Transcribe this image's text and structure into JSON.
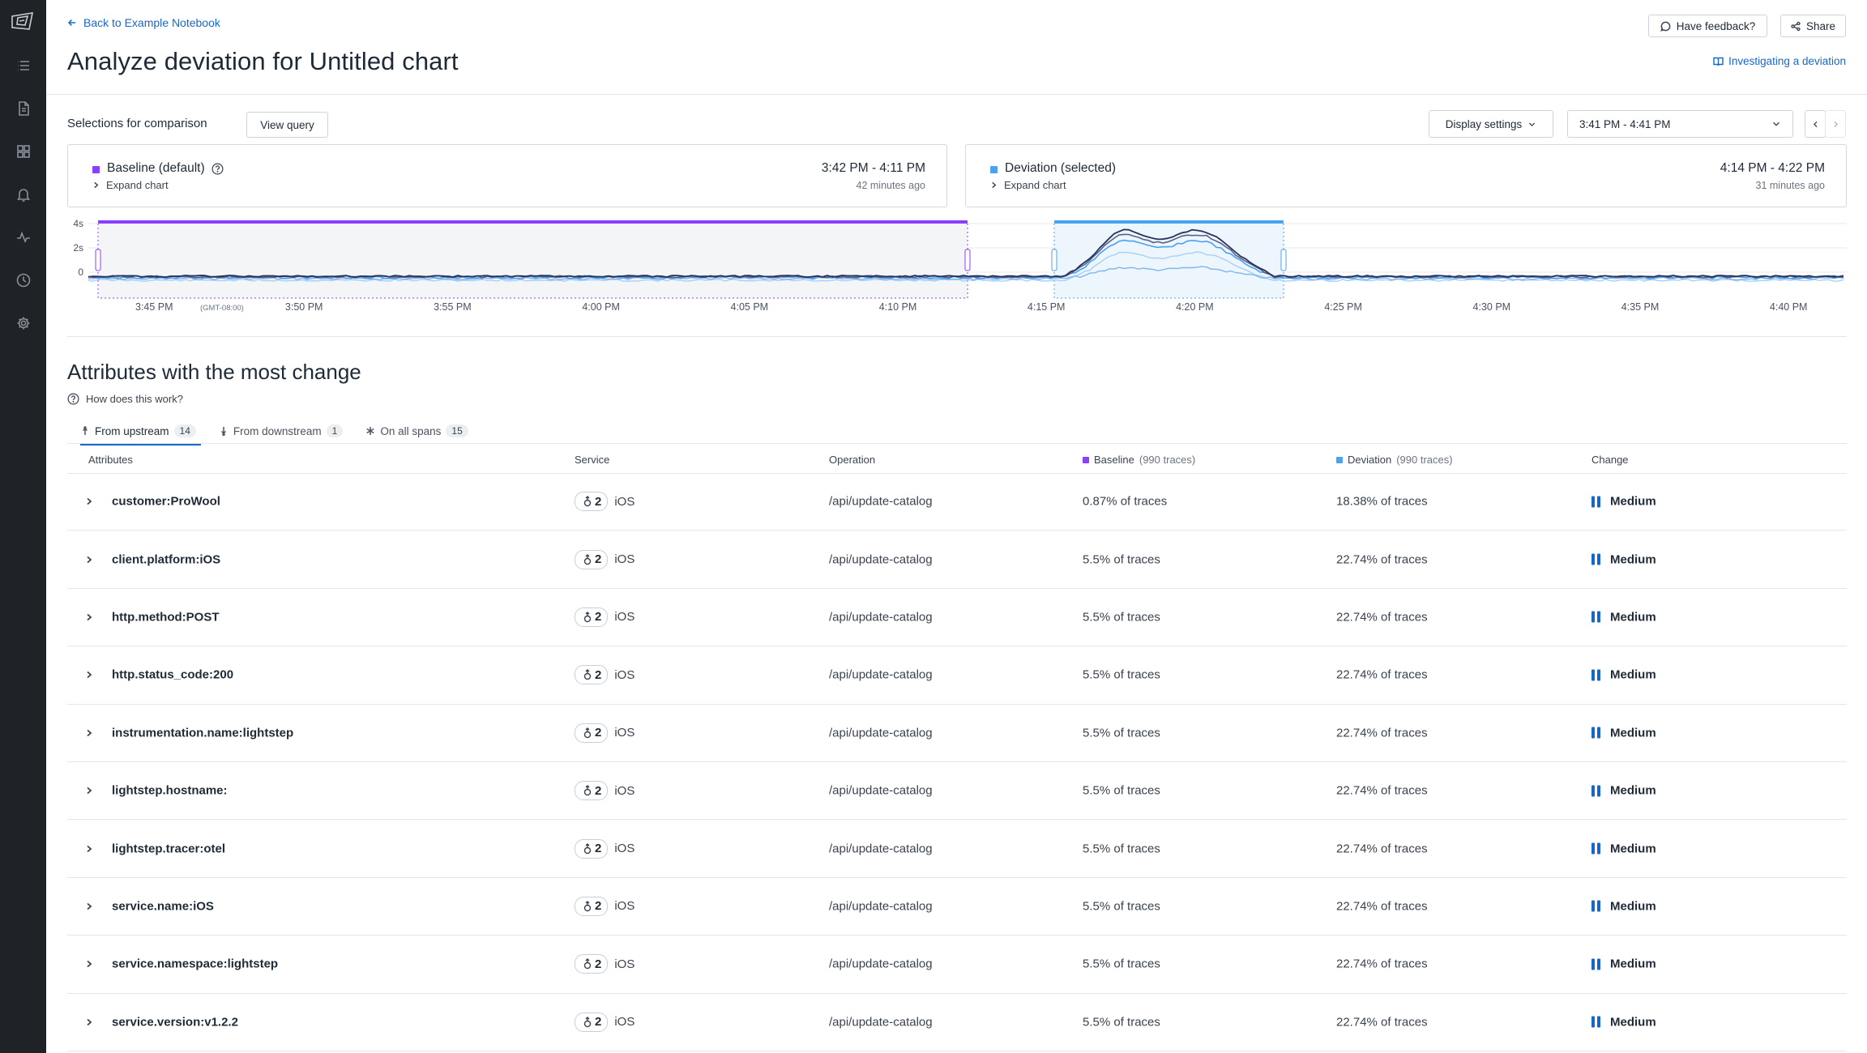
{
  "nav": {
    "back_label": "Back to Example Notebook",
    "title": "Analyze deviation for Untitled chart",
    "feedback_label": "Have feedback?",
    "share_label": "Share",
    "guide_label": "Investigating a deviation"
  },
  "selections": {
    "label": "Selections for comparison",
    "view_query_label": "View query",
    "display_settings_label": "Display settings",
    "time_range": "3:41 PM - 4:41 PM"
  },
  "baseline": {
    "title": "Baseline (default)",
    "expand": "Expand chart",
    "range": "3:42 PM - 4:11 PM",
    "ago": "42 minutes ago",
    "color": "#8a3ffc"
  },
  "deviation": {
    "title": "Deviation (selected)",
    "expand": "Expand chart",
    "range": "4:14 PM - 4:22 PM",
    "ago": "31 minutes ago",
    "color": "#4aa3f0"
  },
  "chart_data": {
    "type": "line",
    "y_ticks": [
      "4s",
      "2s",
      "0"
    ],
    "x_ticks": [
      "3:45 PM",
      "3:50 PM",
      "3:55 PM",
      "4:00 PM",
      "4:05 PM",
      "4:10 PM",
      "4:15 PM",
      "4:20 PM",
      "4:25 PM",
      "4:30 PM",
      "4:35 PM",
      "4:40 PM"
    ],
    "x_tick_note": "(GMT-08:00)",
    "baseline_window": [
      "3:42 PM",
      "4:11 PM"
    ],
    "deviation_window": [
      "4:14 PM",
      "4:22 PM"
    ]
  },
  "attributes": {
    "title": "Attributes with the most change",
    "how_label": "How does this work?",
    "tabs": [
      {
        "label": "From upstream",
        "count": "14"
      },
      {
        "label": "From downstream",
        "count": "1"
      },
      {
        "label": "On all spans",
        "count": "15"
      }
    ],
    "columns": {
      "attributes": "Attributes",
      "service": "Service",
      "operation": "Operation",
      "baseline": "Baseline",
      "baseline_sub": "(990 traces)",
      "deviation": "Deviation",
      "deviation_sub": "(990 traces)",
      "change": "Change"
    },
    "rows": [
      {
        "attr": "customer:ProWool",
        "count": "2",
        "service": "iOS",
        "operation": "/api/update-catalog",
        "baseline": "0.87% of traces",
        "deviation": "18.38% of traces",
        "change": "Medium"
      },
      {
        "attr": "client.platform:iOS",
        "count": "2",
        "service": "iOS",
        "operation": "/api/update-catalog",
        "baseline": "5.5% of traces",
        "deviation": "22.74% of traces",
        "change": "Medium"
      },
      {
        "attr": "http.method:POST",
        "count": "2",
        "service": "iOS",
        "operation": "/api/update-catalog",
        "baseline": "5.5% of traces",
        "deviation": "22.74% of traces",
        "change": "Medium"
      },
      {
        "attr": "http.status_code:200",
        "count": "2",
        "service": "iOS",
        "operation": "/api/update-catalog",
        "baseline": "5.5% of traces",
        "deviation": "22.74% of traces",
        "change": "Medium"
      },
      {
        "attr": "instrumentation.name:lightstep",
        "count": "2",
        "service": "iOS",
        "operation": "/api/update-catalog",
        "baseline": "5.5% of traces",
        "deviation": "22.74% of traces",
        "change": "Medium"
      },
      {
        "attr": "lightstep.hostname:",
        "count": "2",
        "service": "iOS",
        "operation": "/api/update-catalog",
        "baseline": "5.5% of traces",
        "deviation": "22.74% of traces",
        "change": "Medium"
      },
      {
        "attr": "lightstep.tracer:otel",
        "count": "2",
        "service": "iOS",
        "operation": "/api/update-catalog",
        "baseline": "5.5% of traces",
        "deviation": "22.74% of traces",
        "change": "Medium"
      },
      {
        "attr": "service.name:iOS",
        "count": "2",
        "service": "iOS",
        "operation": "/api/update-catalog",
        "baseline": "5.5% of traces",
        "deviation": "22.74% of traces",
        "change": "Medium"
      },
      {
        "attr": "service.namespace:lightstep",
        "count": "2",
        "service": "iOS",
        "operation": "/api/update-catalog",
        "baseline": "5.5% of traces",
        "deviation": "22.74% of traces",
        "change": "Medium"
      },
      {
        "attr": "service.version:v1.2.2",
        "count": "2",
        "service": "iOS",
        "operation": "/api/update-catalog",
        "baseline": "5.5% of traces",
        "deviation": "22.74% of traces",
        "change": "Medium"
      }
    ]
  }
}
